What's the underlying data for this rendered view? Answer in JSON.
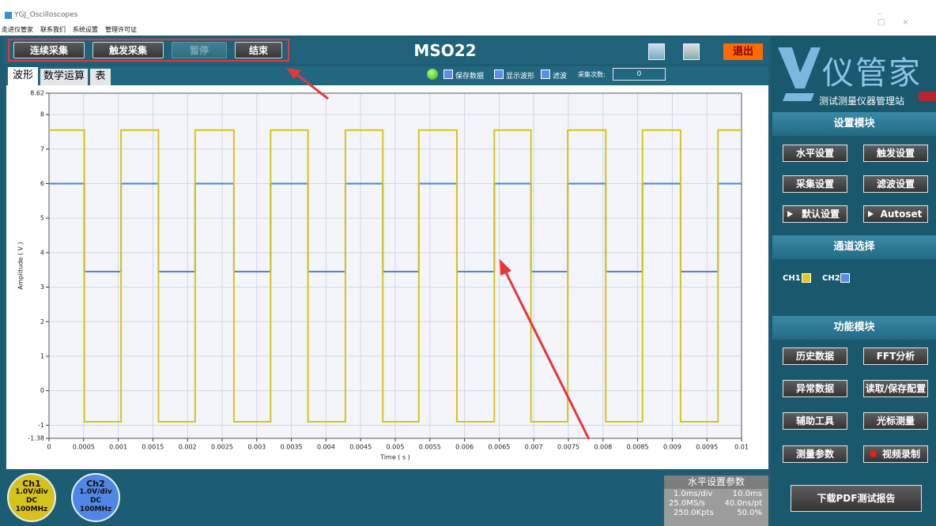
{
  "window": {
    "title": "YGJ_Oscilloscopes"
  },
  "menu": [
    "走进仪管家",
    "联系我们",
    "系统设置",
    "管理许可证"
  ],
  "toolbar": {
    "buttons": [
      "连续采集",
      "触发采集",
      "暂停",
      "结束"
    ],
    "title": "MSO22",
    "exit": "退出"
  },
  "tabs": [
    "波形",
    "数学运算",
    "表"
  ],
  "options": {
    "checks": [
      "保存数据",
      "显示波形",
      "滤波"
    ],
    "count_label": "采集次数:",
    "count_value": 0
  },
  "chart_data": {
    "type": "line",
    "xlabel": "Time ( s )",
    "ylabel": "Amplitude ( V )",
    "x": [
      0,
      0.00051,
      0.00051,
      0.00104,
      0.00104,
      0.00158,
      0.00158,
      0.00211,
      0.00211,
      0.00267,
      0.00267,
      0.0032,
      0.0032,
      0.00374,
      0.00374,
      0.00428,
      0.00428,
      0.00482,
      0.00482,
      0.00534,
      0.00534,
      0.00589,
      0.00589,
      0.00643,
      0.00643,
      0.00696,
      0.00696,
      0.00749,
      0.00749,
      0.00804,
      0.00804,
      0.00857,
      0.00857,
      0.00912,
      0.00912,
      0.00966,
      0.00966,
      0.01
    ],
    "series": [
      {
        "name": "CH1",
        "color": "#d8c41c",
        "values": [
          7.55,
          7.55,
          -0.9,
          -0.9,
          7.55,
          7.55,
          -0.9,
          -0.9,
          7.55,
          7.55,
          -0.9,
          -0.9,
          7.55,
          7.55,
          -0.9,
          -0.9,
          7.55,
          7.55,
          -0.9,
          -0.9,
          7.55,
          7.55,
          -0.9,
          -0.9,
          7.55,
          7.55,
          -0.9,
          -0.9,
          7.55,
          7.55,
          -0.9,
          -0.9,
          7.55,
          7.55,
          -0.9,
          -0.9,
          7.55,
          7.55
        ]
      },
      {
        "name": "CH2",
        "color": "#4f80e0",
        "values": [
          6,
          6,
          3.45,
          3.45,
          6,
          6,
          3.45,
          3.45,
          6,
          6,
          3.45,
          3.45,
          6,
          6,
          3.45,
          3.45,
          6,
          6,
          3.45,
          3.45,
          6,
          6,
          3.45,
          3.45,
          6,
          6,
          3.45,
          3.45,
          6,
          6,
          3.45,
          3.45,
          6,
          6,
          3.45,
          3.45,
          6,
          6
        ]
      }
    ],
    "xlim": [
      0,
      0.01
    ],
    "xticks": [
      0,
      0.0005,
      0.001,
      0.0015,
      0.002,
      0.0025,
      0.003,
      0.0035,
      0.004,
      0.0045,
      0.005,
      0.0055,
      0.006,
      0.0065,
      0.007,
      0.0075,
      0.008,
      0.0085,
      0.009,
      0.0095,
      0.01
    ],
    "ylim": [
      -1.38,
      8.62
    ],
    "yticks": [
      8.62,
      8,
      7,
      6,
      5,
      4,
      3,
      2,
      1,
      0,
      -1,
      -1.38
    ],
    "grid": true
  },
  "channels": [
    {
      "name": "Ch1",
      "scale": "1.0V/div",
      "coupling": "DC",
      "bandwidth": "100MHz"
    },
    {
      "name": "Ch2",
      "scale": "1.0V/div",
      "coupling": "DC",
      "bandwidth": "100MHz"
    }
  ],
  "horizontal": {
    "title": "水平设置参数",
    "rows": [
      [
        "1.0ms/div",
        "10.0ms"
      ],
      [
        "25.0MS/s",
        "40.0ns/pt"
      ],
      [
        "250.0Kpts",
        "50.0%"
      ]
    ]
  },
  "sidebar": {
    "logo": "仪管家",
    "subtitle": "测试测量仪器管理站",
    "settings": {
      "title": "设置模块",
      "buttons": [
        "水平设置",
        "触发设置",
        "采集设置",
        "滤波设置",
        "默认设置",
        "Autoset"
      ]
    },
    "channel_select": {
      "title": "通道选择",
      "channels": [
        "CH1",
        "CH2"
      ]
    },
    "functions": {
      "title": "功能模块",
      "buttons": [
        "历史数据",
        "FFT分析",
        "异常数据",
        "读取/保存配置",
        "辅助工具",
        "光标测量",
        "测量参数",
        "视频录制"
      ]
    },
    "report": "下载PDF测试报告"
  }
}
